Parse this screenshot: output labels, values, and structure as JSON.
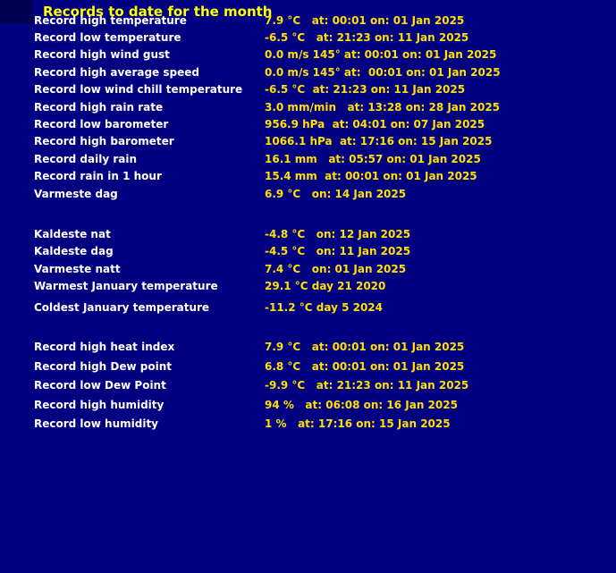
{
  "title": "Records to date for the month",
  "colors": {
    "background": "#000080",
    "corner_shadow": "#000054",
    "title": "#FFFF00",
    "label": "#FFFFFF",
    "value": "#FFE000"
  },
  "records": [
    {
      "label": "Record high temperature",
      "value": "7.9 °C   at: 00:01 on: 01 Jan 2025"
    },
    {
      "label": "Record low temperature",
      "value": "-6.5 °C   at: 21:23 on: 11 Jan 2025"
    },
    {
      "label": "Record high wind gust",
      "value": "0.0 m/s 145° at: 00:01 on: 01 Jan 2025"
    },
    {
      "label": "Record high average speed",
      "value": "0.0 m/s 145° at:  00:01 on: 01 Jan 2025"
    },
    {
      "label": "Record low wind chill temperature",
      "value": "-6.5 °C  at: 21:23 on: 11 Jan 2025"
    },
    {
      "label": "Record high rain rate",
      "value": "3.0 mm/min   at: 13:28 on: 28 Jan 2025"
    },
    {
      "label": "Record low barometer",
      "value": "956.9 hPa  at: 04:01 on: 07 Jan 2025"
    },
    {
      "label": "Record high barometer",
      "value": "1066.1 hPa  at: 17:16 on: 15 Jan 2025"
    },
    {
      "label": "Record daily rain",
      "value": "16.1 mm   at: 05:57 on: 01 Jan 2025"
    },
    {
      "label": "Record rain in 1 hour",
      "value": "15.4 mm  at: 00:01 on: 01 Jan 2025"
    },
    {
      "label": "Varmeste dag",
      "value": "6.9 °C   on: 14 Jan 2025"
    },
    {
      "label": "Kaldeste nat",
      "value": "-4.8 °C   on: 12 Jan 2025"
    },
    {
      "label": "Kaldeste dag",
      "value": "-4.5 °C   on: 11 Jan 2025"
    },
    {
      "label": "Varmeste natt",
      "value": "7.4 °C   on: 01 Jan 2025"
    },
    {
      "label": "Warmest January temperature",
      "value": "29.1 °C day 21 2020"
    },
    {
      "label": "Coldest January temperature",
      "value": "-11.2 °C day 5 2024"
    },
    {
      "label": "Record high heat index",
      "value": "7.9 °C   at: 00:01 on: 01 Jan 2025"
    },
    {
      "label": "Record high Dew point",
      "value": "6.8 °C   at: 00:01 on: 01 Jan 2025"
    },
    {
      "label": "Record low Dew Point",
      "value": "-9.9 °C   at: 21:23 on: 11 Jan 2025"
    },
    {
      "label": "Record high humidity",
      "value": "94 %   at: 06:08 on: 16 Jan 2025"
    },
    {
      "label": "Record low humidity",
      "value": "1 %   at: 17:16 on: 15 Jan 2025"
    }
  ]
}
